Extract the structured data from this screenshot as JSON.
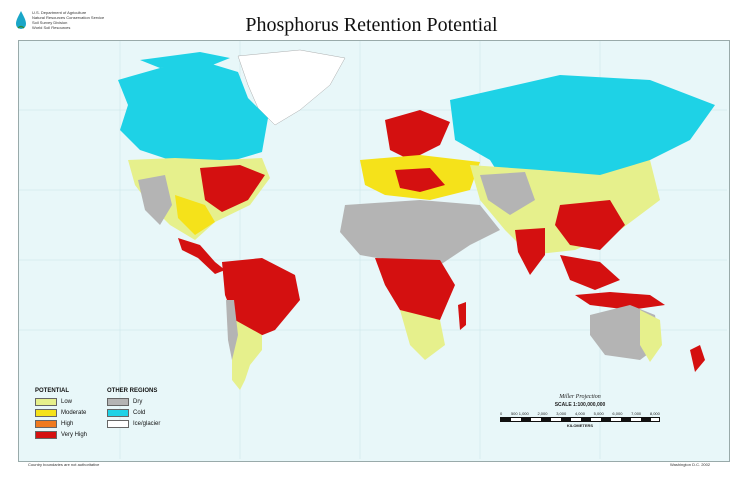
{
  "title": "Phosphorus Retention Potential",
  "agency": {
    "lines": [
      "U.S. Department of Agriculture",
      "Natural Resources Conservation Service",
      "Soil Survey Division",
      "World Soil Resources"
    ]
  },
  "legend": {
    "potential_header": "POTENTIAL",
    "other_header": "OTHER REGIONS",
    "potential_items": [
      {
        "label": "Low",
        "color": "#e6f08c"
      },
      {
        "label": "Moderate",
        "color": "#f5e21a"
      },
      {
        "label": "High",
        "color": "#f07a1e"
      },
      {
        "label": "Very High",
        "color": "#d41010"
      }
    ],
    "other_items": [
      {
        "label": "Dry",
        "color": "#b4b4b4"
      },
      {
        "label": "Cold",
        "color": "#1ed2e6"
      },
      {
        "label": "Ice/glacier",
        "color": "#ffffff"
      }
    ]
  },
  "projection": {
    "name": "Miller Projection",
    "scale": "SCALE 1:100,000,000",
    "ticks": [
      "0",
      "500 1,000",
      "2,000",
      "3,000",
      "4,000",
      "5,000",
      "6,000",
      "7,000",
      "8,000"
    ],
    "unit": "KILOMETERS"
  },
  "footer": {
    "left": "Country boundaries are not authoritative",
    "right": "Washington D.C. 2002"
  },
  "colors": {
    "ocean": "#e8f7f9",
    "low": "#e6f08c",
    "moderate": "#f5e21a",
    "high": "#f07a1e",
    "very_high": "#d41010",
    "dry": "#b4b4b4",
    "cold": "#1ed2e6",
    "ice": "#ffffff"
  }
}
